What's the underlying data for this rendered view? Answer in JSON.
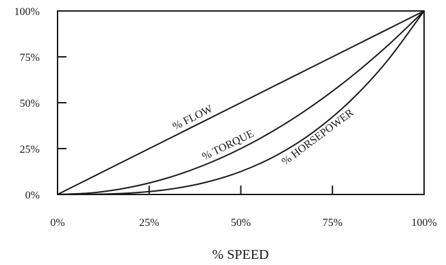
{
  "chart_data": {
    "type": "line",
    "xlabel": "% SPEED",
    "ylabel": "",
    "xlim": [
      0,
      100
    ],
    "ylim": [
      0,
      100
    ],
    "grid": false,
    "x_ticks": [
      {
        "value": 0,
        "label": "0%"
      },
      {
        "value": 25,
        "label": "25%"
      },
      {
        "value": 50,
        "label": "50%"
      },
      {
        "value": 75,
        "label": "75%"
      },
      {
        "value": 100,
        "label": "100%"
      }
    ],
    "y_ticks": [
      {
        "value": 0,
        "label": "0%"
      },
      {
        "value": 25,
        "label": "25%"
      },
      {
        "value": 50,
        "label": "50%"
      },
      {
        "value": 75,
        "label": "75%"
      },
      {
        "value": 100,
        "label": "100%"
      }
    ],
    "series": [
      {
        "name": "% FLOW",
        "x": [
          0,
          10,
          20,
          30,
          40,
          50,
          60,
          70,
          80,
          90,
          100
        ],
        "values": [
          0,
          10,
          20,
          30,
          40,
          50,
          60,
          70,
          80,
          90,
          100
        ]
      },
      {
        "name": "% TORQUE",
        "x": [
          0,
          10,
          20,
          30,
          40,
          50,
          60,
          70,
          80,
          90,
          100
        ],
        "values": [
          0,
          1,
          4,
          9,
          16,
          25,
          36,
          49,
          64,
          81,
          100
        ]
      },
      {
        "name": "% HORSEPOWER",
        "x": [
          0,
          10,
          20,
          30,
          40,
          50,
          60,
          70,
          80,
          90,
          100
        ],
        "values": [
          0,
          0.1,
          0.8,
          2.7,
          6.4,
          12.5,
          21.6,
          34.3,
          51.2,
          72.9,
          100
        ]
      }
    ],
    "colors": {
      "line": "#1a1a1a",
      "background": "#ffffff"
    }
  }
}
